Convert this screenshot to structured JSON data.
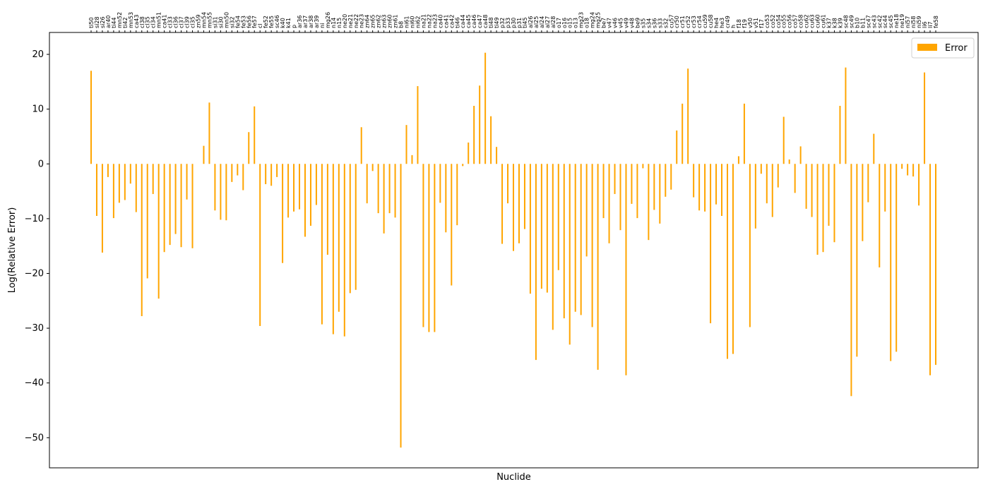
{
  "chart_data": {
    "type": "bar",
    "title": "",
    "xlabel": "Nuclide",
    "ylabel": "Log(Relative Error)",
    "ylim": [
      -55.5,
      24
    ],
    "yticks": [
      20,
      10,
      0,
      -10,
      -20,
      -30,
      -40,
      -50
    ],
    "grid": false,
    "legend_position": "top-right",
    "bar_color": "#ffa500",
    "series": [
      {
        "name": "Error",
        "categories": [
          "ti50",
          "si28",
          "si26",
          "ar40",
          "ti44",
          "mn52",
          "ti42",
          "mn53",
          "ca43",
          "cl38",
          "cl35",
          "cl34",
          "mn51",
          "ca41",
          "cl33",
          "cl36",
          "cl37",
          "cl39",
          "cl35",
          "zn59",
          "mn54",
          "mn55",
          "si31",
          "si30",
          "mn50",
          "si32",
          "fe54",
          "fe53",
          "fe56",
          "fe57",
          "cl",
          "fe52",
          "fe55",
          "sc46",
          "k40",
          "k41",
          "p",
          "ar36",
          "ar37",
          "ar38",
          "ar39",
          "ni",
          "mg26",
          "n14",
          "n15",
          "ne20",
          "ne21",
          "ne22",
          "ne23",
          "zn64",
          "zn65",
          "zn62",
          "zn63",
          "zn60",
          "zn61",
          "b8",
          "ni61",
          "ni60",
          "ni62",
          "na21",
          "na22",
          "na23",
          "ca40",
          "ca41",
          "ca42",
          "ti46",
          "ca44",
          "ca45",
          "ca46",
          "ca47",
          "ca48",
          "ti48",
          "ti49",
          "p32",
          "p33",
          "p30",
          "p31",
          "ti45",
          "al26",
          "al25",
          "al24",
          "al27",
          "al28",
          "o17",
          "o16",
          "o15",
          "o13",
          "mg23",
          "o18",
          "mg24",
          "mg25",
          "be7",
          "v47",
          "v46",
          "v45",
          "v49",
          "v48",
          "be9",
          "s35",
          "s34",
          "s36",
          "s33",
          "s32",
          "cu57",
          "cr50",
          "cr51",
          "cr52",
          "cr53",
          "cr54",
          "cu59",
          "cu58",
          "he4",
          "he3",
          "cr49",
          "h",
          "f18",
          "f19",
          "v50",
          "v51",
          "f17",
          "co53",
          "co52",
          "co54",
          "co55",
          "co56",
          "co57",
          "co58",
          "cu62",
          "cu63",
          "cu60",
          "cu61",
          "k37",
          "k38",
          "k39",
          "sc48",
          "sc49",
          "b10",
          "b11",
          "sc47",
          "sc43",
          "sc42",
          "sc44",
          "sc45",
          "ne18",
          "ne19",
          "ni57",
          "ni58",
          "ni59",
          "li6",
          "li7",
          "fe58"
        ],
        "values": [
          17,
          -9.5,
          -16.2,
          -2.4,
          -9.9,
          -7.1,
          -6.6,
          -3.6,
          -8.8,
          -27.8,
          -20.9,
          -5.5,
          -24.6,
          -16.1,
          -14.8,
          -12.8,
          -15.2,
          -6.5,
          -15.4,
          0,
          3.3,
          11.2,
          -8.5,
          -10.2,
          -10.3,
          -3.3,
          -2.1,
          -4.8,
          5.8,
          10.5,
          -29.6,
          -3.7,
          -4.0,
          -2.4,
          -18.1,
          -9.8,
          -8.7,
          -8.3,
          -13.3,
          -11.3,
          -7.5,
          -29.3,
          -16.6,
          -31.1,
          -27.0,
          -31.5,
          -23.6,
          -23.0,
          6.7,
          -7.2,
          -1.3,
          -9.0,
          -12.7,
          -9.0,
          -9.8,
          -51.8,
          7.1,
          1.6,
          14.2,
          -29.8,
          -30.7,
          -30.7,
          -7.1,
          -12.5,
          -22.2,
          -11.2,
          -0.4,
          3.9,
          10.6,
          14.3,
          20.3,
          8.7,
          3.1,
          -14.6,
          -7.2,
          -15.9,
          -14.5,
          -11.9,
          -23.7,
          -35.8,
          -22.8,
          -23.5,
          -30.3,
          -19.4,
          -28.2,
          -33.0,
          -27.0,
          -27.6,
          -16.9,
          -29.8,
          -37.6,
          -9.9,
          -14.5,
          -5.5,
          -12.1,
          -38.6,
          -7.3,
          -9.9,
          -0.8,
          -13.9,
          -8.4,
          -10.9,
          -6.0,
          -4.7,
          6.1,
          11.0,
          17.4,
          -6.1,
          -8.5,
          -8.7,
          -29.1,
          -7.4,
          -9.5,
          -35.6,
          -34.7,
          1.4,
          11.0,
          -29.8,
          -11.8,
          -1.8,
          -7.2,
          -9.7,
          -4.3,
          8.6,
          0.8,
          -5.3,
          3.2,
          -8.2,
          -9.7,
          -16.6,
          -16.1,
          -11.3,
          -14.3,
          10.6,
          17.6,
          -42.4,
          -35.2,
          -14.1,
          -7.0,
          5.5,
          -18.9,
          -8.7,
          -36.0,
          -34.3,
          -0.9,
          -2.1,
          -2.3,
          -7.6,
          16.7,
          -38.6,
          -36.7
        ]
      }
    ]
  }
}
